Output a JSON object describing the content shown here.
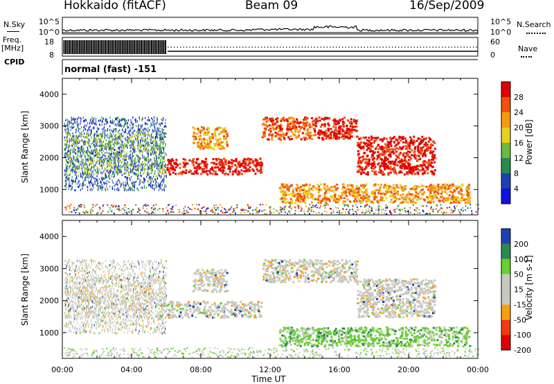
{
  "header": {
    "station": "Hokkaido (fitACF)",
    "beam": "Beam 09",
    "date": "16/Sep/2009"
  },
  "side_labels": {
    "nsky": "N.Sky",
    "freq_line1": "Freq.",
    "freq_line2": "[MHz]",
    "cpid": "CPID",
    "nsearch": "N.Search",
    "nave": "Nave",
    "cpid_value": "normal (fast) -151"
  },
  "colors": {
    "power": [
      "#1010e0",
      "#2040b0",
      "#2a8a50",
      "#6aba40",
      "#e8d020",
      "#f59a10",
      "#f05010",
      "#e00000"
    ],
    "velocity": [
      "#e00000",
      "#f03a10",
      "#f5a010",
      "#c8c8c0",
      "#c8c8c0",
      "#6ad030",
      "#2a8a50",
      "#2040b0"
    ]
  },
  "chart_data": [
    {
      "type": "line",
      "name": "nsky-nsearch",
      "ylabel_left": "N.Sky",
      "ylabel_right": "N.Search",
      "yticks_left": [
        "10^5",
        "10^0"
      ],
      "yticks_right": [
        "10^5",
        "10^0"
      ],
      "xlim_hours": [
        0,
        24
      ]
    },
    {
      "type": "line",
      "name": "freq-nave",
      "ylabel_left": "Freq. [MHz]",
      "ylabel_right": "Nave",
      "yticks_left": [
        "18",
        "8"
      ],
      "yticks_right": [
        "60",
        "0"
      ],
      "xlim_hours": [
        0,
        24
      ]
    },
    {
      "type": "heatmap",
      "name": "power",
      "ylabel": "Slant Range [km]",
      "yticks": [
        "1000",
        "2000",
        "3000",
        "4000"
      ],
      "ylim": [
        200,
        4500
      ],
      "xlim_hours": [
        0,
        24
      ],
      "colorbar_label": "Power [dB]",
      "colorbar_ticks": [
        "4",
        "8",
        "12",
        "16",
        "20",
        "24",
        "28"
      ],
      "echo_regions": [
        {
          "t": [
            0.1,
            6.0
          ],
          "r": [
            1000,
            3300
          ],
          "level": 1
        },
        {
          "t": [
            0.1,
            6.0
          ],
          "r": [
            1500,
            2800
          ],
          "level": 3
        },
        {
          "t": [
            6.0,
            11.5
          ],
          "r": [
            1500,
            2000
          ],
          "level": 7
        },
        {
          "t": [
            7.5,
            9.5
          ],
          "r": [
            2300,
            3000
          ],
          "level": 5
        },
        {
          "t": [
            11.5,
            14.5
          ],
          "r": [
            2600,
            3300
          ],
          "level": 6
        },
        {
          "t": [
            14.5,
            17.0
          ],
          "r": [
            2600,
            3300
          ],
          "level": 7
        },
        {
          "t": [
            17.0,
            21.5
          ],
          "r": [
            1500,
            2700
          ],
          "level": 7
        },
        {
          "t": [
            12.5,
            23.5
          ],
          "r": [
            600,
            1200
          ],
          "level": 5
        }
      ]
    },
    {
      "type": "heatmap",
      "name": "velocity",
      "ylabel": "Slant Range [km]",
      "yticks": [
        "1000",
        "2000",
        "3000",
        "4000"
      ],
      "ylim": [
        200,
        4500
      ],
      "xlabel": "Time UT",
      "xticks": [
        "00:00",
        "04:00",
        "08:00",
        "12:00",
        "16:00",
        "20:00",
        "00:00"
      ],
      "xlim_hours": [
        0,
        24
      ],
      "colorbar_label": "Velocity [m s-1]",
      "colorbar_ticks": [
        "200",
        "100",
        "50",
        "15",
        "-15",
        "-50",
        "-100",
        "-200"
      ]
    }
  ]
}
